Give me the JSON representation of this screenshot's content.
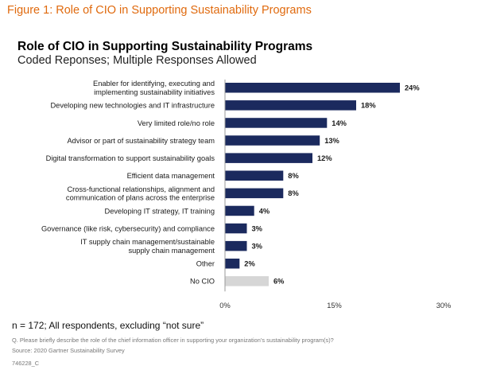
{
  "figure_title": "Figure 1: Role of CIO in Supporting Sustainability Programs",
  "note": "n = 172; All respondents, excluding “not sure”",
  "question": "Q. Please briefly describe the role of the chief information officer in supporting your organization’s sustainability program(s)?",
  "source": "Source: 2020 Gartner Sustainability Survey",
  "doc_code": "746228_C",
  "colors": {
    "figure_title": "#e06a0e",
    "bar": "#1b2a5e",
    "bar_muted": "#d6d6d6"
  },
  "chart_data": {
    "type": "bar",
    "orientation": "horizontal",
    "title": "Role of CIO in Supporting Sustainability Programs",
    "subtitle": "Coded Reponses; Multiple Responses Allowed",
    "categories": [
      [
        "Enabler for identifying, executing and",
        "implementing sustainability initiatives"
      ],
      [
        "Developing new technologies and IT infrastructure"
      ],
      [
        "Very limited role/no role"
      ],
      [
        "Advisor or part of sustainability strategy team"
      ],
      [
        "Digital transformation to support sustainability goals"
      ],
      [
        "Efficient data management"
      ],
      [
        "Cross-functional relationships, alignment and",
        "communication of plans across the enterprise"
      ],
      [
        "Developing IT strategy, IT training"
      ],
      [
        "Governance (like risk, cybersecurity) and compliance"
      ],
      [
        "IT supply chain management/sustainable",
        "supply chain management"
      ],
      [
        "Other"
      ],
      [
        "No CIO"
      ]
    ],
    "values": [
      24,
      18,
      14,
      13,
      12,
      8,
      8,
      4,
      3,
      3,
      2,
      6
    ],
    "value_labels": [
      "24%",
      "18%",
      "14%",
      "13%",
      "12%",
      "8%",
      "8%",
      "4%",
      "3%",
      "3%",
      "2%",
      "6%"
    ],
    "muted": [
      false,
      false,
      false,
      false,
      false,
      false,
      false,
      false,
      false,
      false,
      false,
      true
    ],
    "xlim": [
      0,
      30
    ],
    "xticks": [
      0,
      15,
      30
    ],
    "xtick_labels": [
      "0%",
      "15%",
      "30%"
    ],
    "grid": false,
    "legend": false
  }
}
